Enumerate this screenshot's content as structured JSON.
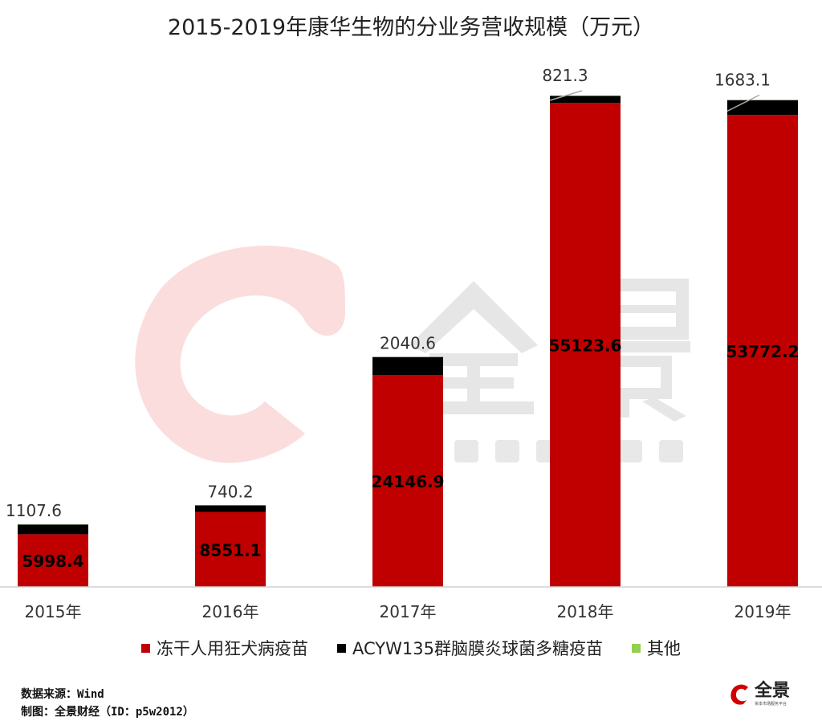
{
  "chart_data": {
    "type": "bar",
    "stacked": true,
    "title": "2015-2019年康华生物的分业务营收规模（万元）",
    "categories": [
      "2015年",
      "2016年",
      "2017年",
      "2018年",
      "2019年"
    ],
    "series": [
      {
        "name": "冻干人用狂犬病疫苗",
        "color": "#c00000",
        "values": [
          5998.4,
          8551.1,
          24146.9,
          55123.6,
          53772.2
        ],
        "labels": [
          "5998.4",
          "8551.1",
          "24146.9",
          "55123.6",
          "53772.2"
        ]
      },
      {
        "name": "ACYW135群脑膜炎球菌多糖疫苗",
        "color": "#000000",
        "values": [
          1107.6,
          740.2,
          2040.6,
          821.3,
          1683.1
        ],
        "labels": [
          "1107.6",
          "740.2",
          "2040.6",
          "821.3",
          "1683.1"
        ]
      },
      {
        "name": "其他",
        "color": "#92d050",
        "values": [
          30,
          0,
          0,
          30,
          30
        ]
      }
    ],
    "ylim": [
      0,
      60000
    ],
    "grid": false,
    "legend": "bottom"
  },
  "footer": {
    "source": "数据来源：Wind",
    "maker": "制图：全景财经（ID：p5w2012）"
  },
  "watermark": {
    "brand": "全景",
    "tagline": "资本市场服务平台"
  },
  "logo": {
    "brand": "全景",
    "tagline": "资本市场服务平台"
  }
}
